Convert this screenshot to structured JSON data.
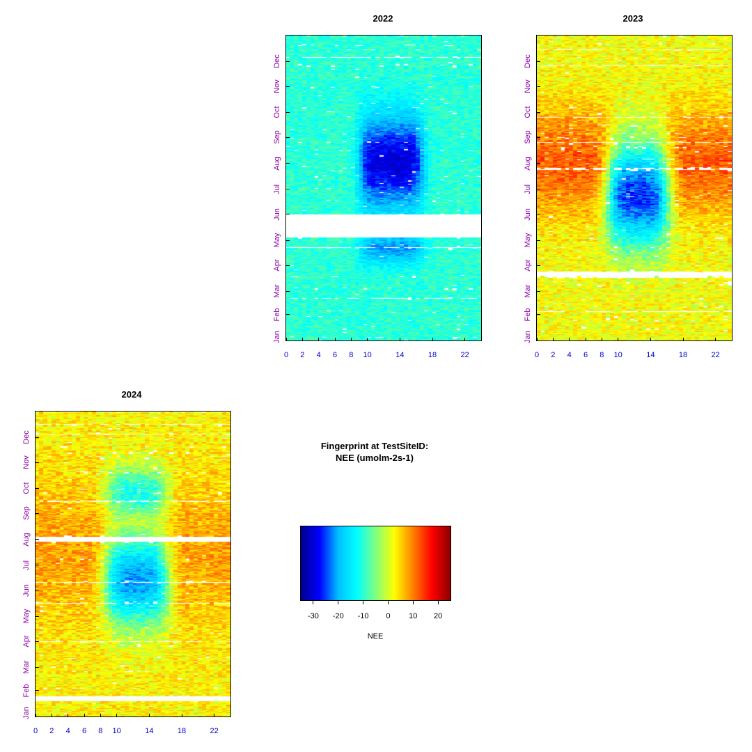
{
  "figure": {
    "title_line1": "Fingerprint at TestSiteID:",
    "title_line2": "NEE (umolm-2s-1)"
  },
  "legend": {
    "label": "NEE",
    "ticks": [
      "-30",
      "-20",
      "-10",
      "0",
      "10",
      "20"
    ],
    "tick_values": [
      -30,
      -20,
      -10,
      0,
      10,
      20
    ],
    "range": [
      -35,
      25
    ],
    "colormap": [
      "#00008b",
      "#0000ff",
      "#00bfff",
      "#00ffff",
      "#7fff7f",
      "#ffff00",
      "#ff7f00",
      "#ff0000",
      "#8b0000"
    ]
  },
  "chart_data": [
    {
      "type": "heatmap",
      "title": "2022",
      "xlabel": "",
      "ylabel": "",
      "xlim": [
        0,
        24
      ],
      "x_ticks": [
        "0",
        "2",
        "4",
        "6",
        "8",
        "10",
        "14",
        "18",
        "22"
      ],
      "x_tick_values": [
        0,
        2,
        4,
        6,
        8,
        10,
        14,
        18,
        22
      ],
      "y_ticks": [
        "Jan",
        "Feb",
        "Mar",
        "Apr",
        "May",
        "Jun",
        "Jul",
        "Aug",
        "Sep",
        "Oct",
        "Nov",
        "Dec"
      ],
      "y_tick_days": [
        1,
        32,
        60,
        91,
        121,
        152,
        182,
        213,
        244,
        274,
        305,
        335
      ],
      "ylim": [
        1,
        366
      ],
      "value_range": [
        -35,
        25
      ],
      "description_values": {
        "night_nee": -10,
        "summer_midday_nee": -28,
        "spring_midday_nee": -18,
        "data_gap_days": [
          124,
          152
        ]
      }
    },
    {
      "type": "heatmap",
      "title": "2023",
      "xlabel": "",
      "ylabel": "",
      "xlim": [
        0,
        24
      ],
      "x_ticks": [
        "0",
        "2",
        "4",
        "6",
        "8",
        "10",
        "14",
        "18",
        "22"
      ],
      "x_tick_values": [
        0,
        2,
        4,
        6,
        8,
        10,
        14,
        18,
        22
      ],
      "y_ticks": [
        "Jan",
        "Feb",
        "Mar",
        "Apr",
        "May",
        "Jun",
        "Jul",
        "Aug",
        "Sep",
        "Oct",
        "Nov",
        "Dec"
      ],
      "y_tick_days": [
        1,
        32,
        60,
        91,
        121,
        152,
        182,
        213,
        244,
        274,
        305,
        335
      ],
      "ylim": [
        1,
        366
      ],
      "value_range": [
        -35,
        25
      ],
      "description_values": {
        "winter_nee": 2,
        "summer_night_nee": 12,
        "summer_midday_nee": -25,
        "data_gap_days": [
          78,
          83
        ]
      }
    },
    {
      "type": "heatmap",
      "title": "2024",
      "xlabel": "",
      "ylabel": "",
      "xlim": [
        0,
        24
      ],
      "x_ticks": [
        "0",
        "2",
        "4",
        "6",
        "8",
        "10",
        "14",
        "18",
        "22"
      ],
      "x_tick_values": [
        0,
        2,
        4,
        6,
        8,
        10,
        14,
        18,
        22
      ],
      "y_ticks": [
        "Jan",
        "Feb",
        "Mar",
        "Apr",
        "May",
        "Jun",
        "Jul",
        "Aug",
        "Sep",
        "Oct",
        "Nov",
        "Dec"
      ],
      "y_tick_days": [
        1,
        32,
        60,
        91,
        121,
        152,
        182,
        213,
        244,
        274,
        305,
        335
      ],
      "ylim": [
        1,
        366
      ],
      "value_range": [
        -35,
        25
      ],
      "description_values": {
        "winter_nee": 3,
        "summer_night_nee": 8,
        "summer_midday_nee": -20,
        "data_gap_days": [
          [
            19,
            25
          ],
          [
            210,
            217
          ]
        ]
      }
    }
  ]
}
